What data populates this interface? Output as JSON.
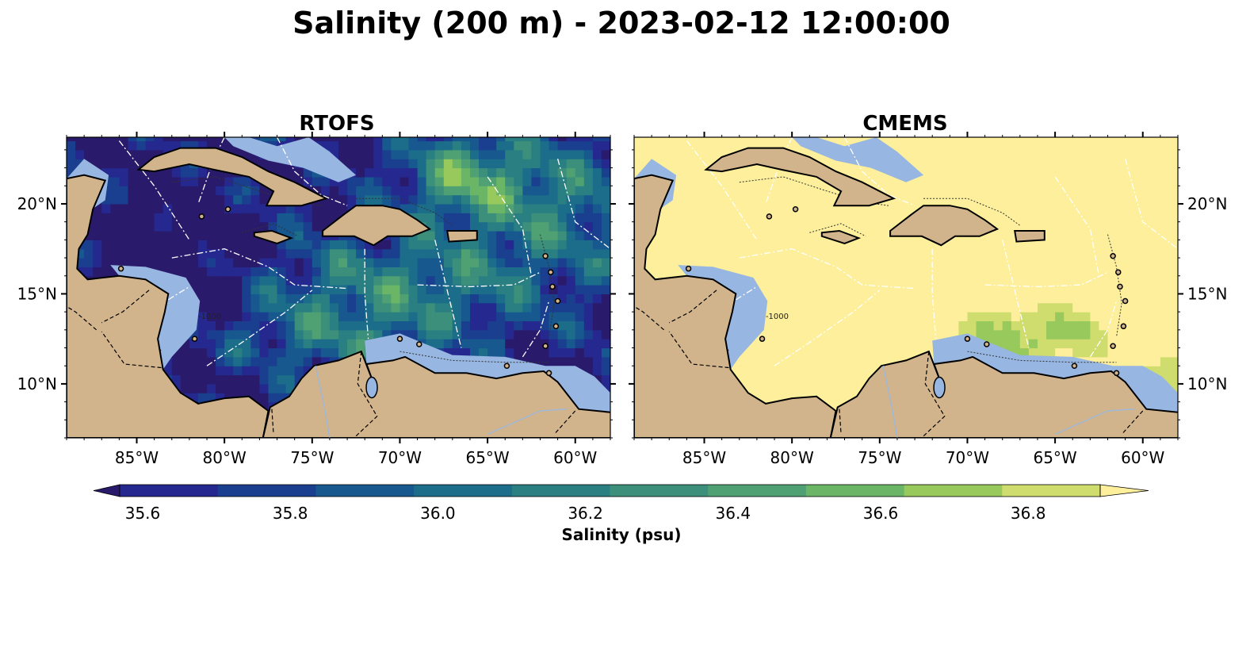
{
  "figure": {
    "title": "Salinity (200 m) - 2023-02-12 12:00:00"
  },
  "colors": {
    "land": "#d2b48c",
    "shelf": "#97b6e1",
    "coast": "#000000",
    "eez": "#ffffff",
    "river": "#9fb8d8",
    "levels": [
      "#2a1a6b",
      "#25288f",
      "#1a3f8f",
      "#17588f",
      "#1b6d8a",
      "#2a7f82",
      "#3c8f7a",
      "#4fa173",
      "#6bb567",
      "#98c95c",
      "#cfdc6e",
      "#fdef9b"
    ]
  },
  "chart_data": {
    "type": "map",
    "variable": "Salinity",
    "depth": "200 m",
    "datetime": "2023-02-12 12:00:00",
    "colorbar": {
      "label": "Salinity (psu)",
      "vmin": 35.5,
      "vmax": 37.0,
      "step": 0.1,
      "extend": "both",
      "ticks": [
        35.6,
        35.8,
        36.0,
        36.2,
        36.4,
        36.6,
        36.8
      ],
      "tick_labels": [
        "35.6",
        "35.8",
        "36.0",
        "36.2",
        "36.4",
        "36.6",
        "36.8"
      ]
    },
    "extent": {
      "lon_min": -89,
      "lon_max": -58,
      "lat_min": 7,
      "lat_max": 23.7
    },
    "lon_ticks": [
      -85,
      -80,
      -75,
      -70,
      -65,
      -60
    ],
    "lon_tick_labels": [
      "85°W",
      "80°W",
      "75°W",
      "70°W",
      "65°W",
      "60°W"
    ],
    "lat_ticks": [
      10,
      15,
      20
    ],
    "lat_tick_labels": [
      "10°N",
      "15°N",
      "20°N"
    ],
    "isobath_label": "-1000",
    "panels": [
      {
        "name": "RTOFS",
        "ytick_side": "left",
        "typical_range": [
          35.5,
          36.9
        ]
      },
      {
        "name": "CMEMS",
        "ytick_side": "right",
        "typical_range": [
          35.6,
          37.0
        ]
      }
    ]
  }
}
